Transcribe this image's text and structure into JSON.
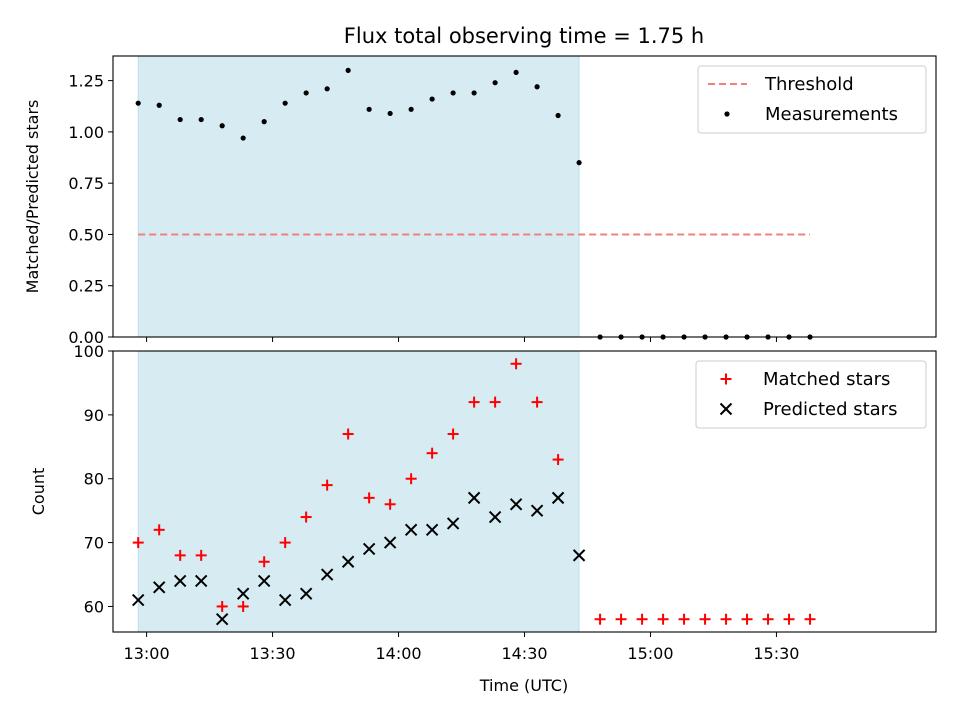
{
  "figure": {
    "title": "Flux total observing time = 1.75 h"
  },
  "chart_data": [
    {
      "type": "scatter",
      "ylabel": "Matched/Predicted stars",
      "xlim": [
        "12:52",
        "16:08"
      ],
      "ylim": [
        0,
        1.37
      ],
      "yticks": [
        0,
        0.25,
        0.5,
        0.75,
        1.0,
        1.25
      ],
      "ytick_labels": [
        "0.00",
        "0.25",
        "0.50",
        "0.75",
        "1.00",
        "1.25"
      ],
      "xticks": [
        "13:00",
        "13:30",
        "14:00",
        "14:30",
        "15:00",
        "15:30"
      ],
      "shaded_span": [
        "12:58",
        "14:43"
      ],
      "legend_position": "upper right",
      "threshold": {
        "name": "Threshold",
        "value": 0.5,
        "x_range": [
          "12:58",
          "15:38"
        ],
        "color": "#f08080"
      },
      "series": [
        {
          "name": "Measurements",
          "color": "#000000",
          "points": [
            [
              "12:58",
              1.14
            ],
            [
              "13:03",
              1.13
            ],
            [
              "13:08",
              1.06
            ],
            [
              "13:13",
              1.06
            ],
            [
              "13:18",
              1.03
            ],
            [
              "13:23",
              0.97
            ],
            [
              "13:28",
              1.05
            ],
            [
              "13:33",
              1.14
            ],
            [
              "13:38",
              1.19
            ],
            [
              "13:43",
              1.21
            ],
            [
              "13:48",
              1.3
            ],
            [
              "13:53",
              1.11
            ],
            [
              "13:58",
              1.09
            ],
            [
              "14:03",
              1.11
            ],
            [
              "14:08",
              1.16
            ],
            [
              "14:13",
              1.19
            ],
            [
              "14:18",
              1.19
            ],
            [
              "14:23",
              1.24
            ],
            [
              "14:28",
              1.29
            ],
            [
              "14:33",
              1.22
            ],
            [
              "14:38",
              1.08
            ],
            [
              "14:43",
              0.85
            ],
            [
              "14:48",
              0
            ],
            [
              "14:53",
              0
            ],
            [
              "14:58",
              0
            ],
            [
              "15:03",
              0
            ],
            [
              "15:08",
              0
            ],
            [
              "15:13",
              0
            ],
            [
              "15:18",
              0
            ],
            [
              "15:23",
              0
            ],
            [
              "15:28",
              0
            ],
            [
              "15:33",
              0
            ],
            [
              "15:38",
              0
            ]
          ]
        }
      ]
    },
    {
      "type": "scatter",
      "xlabel": "Time (UTC)",
      "ylabel": "Count",
      "xlim": [
        "12:52",
        "16:08"
      ],
      "ylim": [
        56,
        100
      ],
      "yticks": [
        60,
        70,
        80,
        90,
        100
      ],
      "xticks": [
        "13:00",
        "13:30",
        "14:00",
        "14:30",
        "15:00",
        "15:30"
      ],
      "shaded_span": [
        "12:58",
        "14:43"
      ],
      "legend_position": "upper right",
      "series": [
        {
          "name": "Matched stars",
          "marker": "plus",
          "color": "#ff0000",
          "points": [
            [
              "12:58",
              70
            ],
            [
              "13:03",
              72
            ],
            [
              "13:08",
              68
            ],
            [
              "13:13",
              68
            ],
            [
              "13:18",
              60
            ],
            [
              "13:23",
              60
            ],
            [
              "13:28",
              67
            ],
            [
              "13:33",
              70
            ],
            [
              "13:38",
              74
            ],
            [
              "13:43",
              79
            ],
            [
              "13:48",
              87
            ],
            [
              "13:53",
              77
            ],
            [
              "13:58",
              76
            ],
            [
              "14:03",
              80
            ],
            [
              "14:08",
              84
            ],
            [
              "14:13",
              87
            ],
            [
              "14:18",
              92
            ],
            [
              "14:23",
              92
            ],
            [
              "14:28",
              98
            ],
            [
              "14:33",
              92
            ],
            [
              "14:38",
              83
            ],
            [
              "14:48",
              58
            ],
            [
              "14:53",
              58
            ],
            [
              "14:58",
              58
            ],
            [
              "15:03",
              58
            ],
            [
              "15:08",
              58
            ],
            [
              "15:13",
              58
            ],
            [
              "15:18",
              58
            ],
            [
              "15:23",
              58
            ],
            [
              "15:28",
              58
            ],
            [
              "15:33",
              58
            ],
            [
              "15:38",
              58
            ]
          ]
        },
        {
          "name": "Predicted stars",
          "marker": "x",
          "color": "#000000",
          "points": [
            [
              "12:58",
              61
            ],
            [
              "13:03",
              63
            ],
            [
              "13:08",
              64
            ],
            [
              "13:13",
              64
            ],
            [
              "13:18",
              58
            ],
            [
              "13:23",
              62
            ],
            [
              "13:28",
              64
            ],
            [
              "13:33",
              61
            ],
            [
              "13:38",
              62
            ],
            [
              "13:43",
              65
            ],
            [
              "13:48",
              67
            ],
            [
              "13:53",
              69
            ],
            [
              "13:58",
              70
            ],
            [
              "14:03",
              72
            ],
            [
              "14:08",
              72
            ],
            [
              "14:13",
              73
            ],
            [
              "14:18",
              77
            ],
            [
              "14:23",
              74
            ],
            [
              "14:28",
              76
            ],
            [
              "14:33",
              75
            ],
            [
              "14:38",
              77
            ],
            [
              "14:43",
              68
            ]
          ]
        }
      ]
    }
  ]
}
